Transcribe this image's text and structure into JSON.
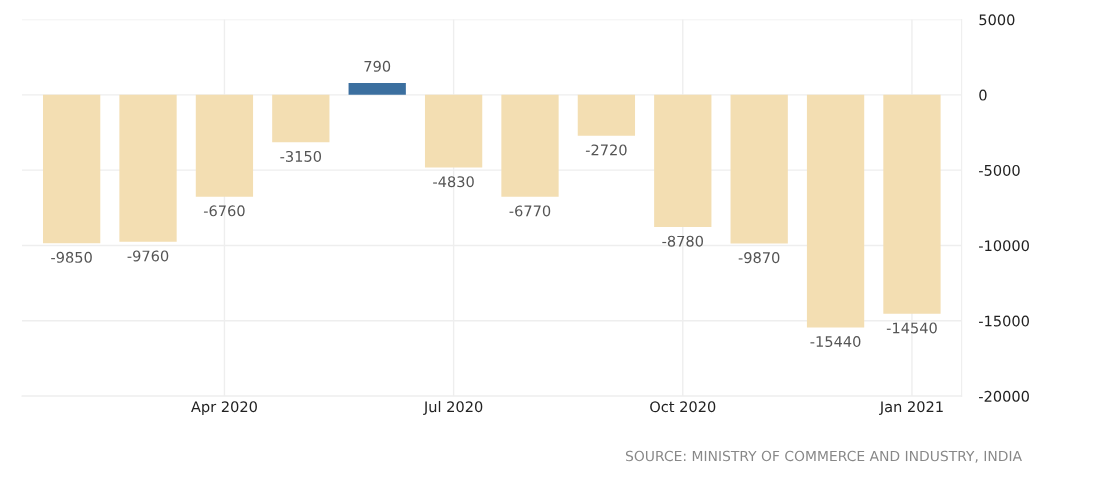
{
  "chart_data": {
    "type": "bar",
    "categories": [
      null,
      null,
      "Apr 2020",
      null,
      null,
      "Jul 2020",
      null,
      null,
      "Oct 2020",
      null,
      null,
      "Jan 2021"
    ],
    "values": [
      -9850,
      -9760,
      -6760,
      -3150,
      790,
      -4830,
      -6770,
      -2720,
      -8780,
      -9870,
      -15440,
      -14540
    ],
    "colors": [
      "#f3deb2",
      "#f3deb2",
      "#f3deb2",
      "#f3deb2",
      "#3b6f9f",
      "#f3deb2",
      "#f3deb2",
      "#f3deb2",
      "#f3deb2",
      "#f3deb2",
      "#f3deb2",
      "#f3deb2"
    ],
    "ylim": [
      -20000,
      5000
    ],
    "yticks": [
      -20000,
      -15000,
      -10000,
      -5000,
      0,
      5000
    ],
    "grid": true,
    "data_labels": true,
    "annotations": [
      "SOURCE: MINISTRY OF COMMERCE AND INDUSTRY, INDIA"
    ]
  }
}
